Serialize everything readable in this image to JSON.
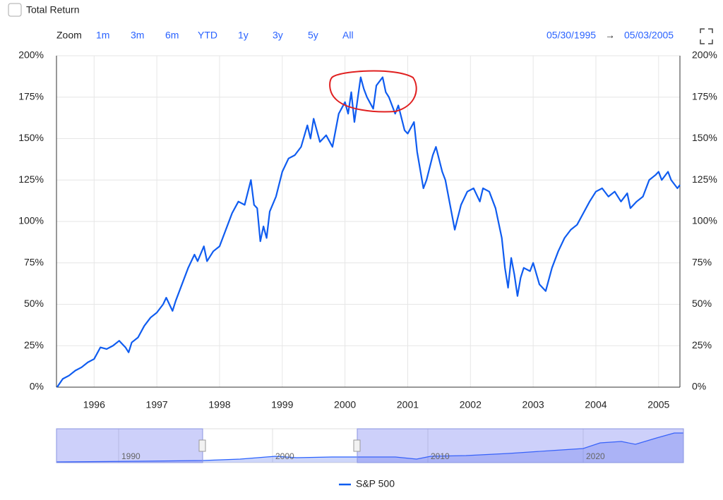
{
  "controls": {
    "total_return": "Total Return",
    "zoom": "Zoom",
    "buttons": [
      "1m",
      "3m",
      "6m",
      "YTD",
      "1y",
      "3y",
      "5y",
      "All"
    ],
    "date_from": "05/30/1995",
    "arrow": "→",
    "date_to": "05/03/2005"
  },
  "navigator": {
    "labels": [
      "1990",
      "2000",
      "2010",
      "2020"
    ]
  },
  "chart_data": {
    "type": "line",
    "x": [
      1995.41,
      1995.5,
      1995.6,
      1995.7,
      1995.8,
      1995.9,
      1996.0,
      1996.1,
      1996.2,
      1996.3,
      1996.4,
      1996.5,
      1996.55,
      1996.6,
      1996.7,
      1996.8,
      1996.9,
      1997.0,
      1997.1,
      1997.15,
      1997.25,
      1997.3,
      1997.4,
      1997.5,
      1997.6,
      1997.65,
      1997.75,
      1997.8,
      1997.9,
      1998.0,
      1998.1,
      1998.2,
      1998.3,
      1998.4,
      1998.5,
      1998.55,
      1998.6,
      1998.65,
      1998.7,
      1998.75,
      1998.8,
      1998.9,
      1999.0,
      1999.1,
      1999.2,
      1999.3,
      1999.4,
      1999.45,
      1999.5,
      1999.6,
      1999.7,
      1999.8,
      1999.9,
      2000.0,
      2000.05,
      2000.1,
      2000.15,
      2000.25,
      2000.3,
      2000.35,
      2000.45,
      2000.5,
      2000.6,
      2000.65,
      2000.7,
      2000.8,
      2000.85,
      2000.95,
      2001.0,
      2001.1,
      2001.15,
      2001.25,
      2001.3,
      2001.4,
      2001.45,
      2001.55,
      2001.6,
      2001.7,
      2001.75,
      2001.85,
      2001.95,
      2002.05,
      2002.15,
      2002.2,
      2002.3,
      2002.4,
      2002.5,
      2002.55,
      2002.6,
      2002.65,
      2002.7,
      2002.75,
      2002.8,
      2002.85,
      2002.95,
      2003.0,
      2003.1,
      2003.2,
      2003.3,
      2003.4,
      2003.5,
      2003.6,
      2003.7,
      2003.8,
      2003.9,
      2004.0,
      2004.1,
      2004.2,
      2004.3,
      2004.4,
      2004.5,
      2004.55,
      2004.65,
      2004.75,
      2004.85,
      2004.95,
      2005.0,
      2005.05,
      2005.15,
      2005.2,
      2005.3,
      2005.34
    ],
    "series": [
      {
        "name": "S&P 500",
        "color": "#0f5cf0",
        "values": [
          0,
          5,
          7,
          10,
          12,
          15,
          17,
          24,
          23,
          25,
          28,
          24,
          21,
          27,
          30,
          37,
          42,
          45,
          50,
          54,
          46,
          52,
          62,
          72,
          80,
          76,
          85,
          76,
          82,
          85,
          95,
          105,
          112,
          110,
          125,
          110,
          108,
          88,
          97,
          90,
          106,
          115,
          130,
          138,
          140,
          145,
          158,
          150,
          162,
          148,
          152,
          145,
          165,
          172,
          165,
          178,
          160,
          187,
          180,
          175,
          168,
          182,
          187,
          178,
          175,
          165,
          170,
          155,
          153,
          160,
          142,
          120,
          125,
          140,
          145,
          130,
          125,
          105,
          95,
          110,
          118,
          120,
          112,
          120,
          118,
          108,
          90,
          72,
          60,
          78,
          68,
          55,
          66,
          72,
          70,
          75,
          62,
          58,
          72,
          82,
          90,
          95,
          98,
          105,
          112,
          118,
          120,
          115,
          118,
          112,
          117,
          108,
          112,
          115,
          125,
          128,
          130,
          125,
          130,
          125,
          120,
          122
        ]
      }
    ],
    "xlim": [
      1995.4,
      2005.34
    ],
    "xticks": [
      1996,
      1997,
      1998,
      1999,
      2000,
      2001,
      2002,
      2003,
      2004,
      2005
    ],
    "ylim": [
      0,
      200
    ],
    "yticks": [
      {
        "value": 0,
        "label": "0%"
      },
      {
        "value": 25,
        "label": "25%"
      },
      {
        "value": 50,
        "label": "50%"
      },
      {
        "value": 75,
        "label": "75%"
      },
      {
        "value": 100,
        "label": "100%"
      },
      {
        "value": 125,
        "label": "125%"
      },
      {
        "value": 150,
        "label": "150%"
      },
      {
        "value": 175,
        "label": "175%"
      },
      {
        "value": 200,
        "label": "200%"
      }
    ],
    "grid": true
  }
}
